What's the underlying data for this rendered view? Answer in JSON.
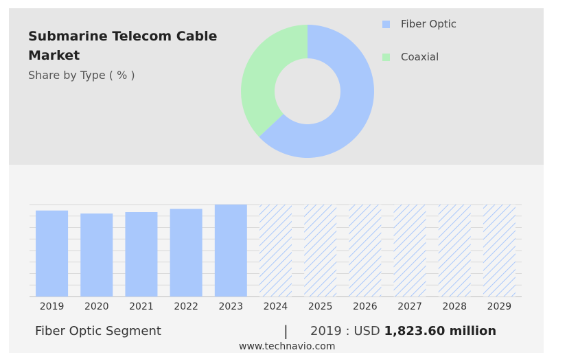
{
  "header": {
    "title_line1": "Submarine Telecom Cable",
    "title_line2": "Market",
    "subtitle": "Share by Type ( % )"
  },
  "legend": [
    {
      "label": "Fiber Optic",
      "color": "#a9c8fc"
    },
    {
      "label": "Coaxial",
      "color": "#b4f0bc"
    }
  ],
  "footer": {
    "segment": "Fiber Optic Segment",
    "separator": "|",
    "prefix": "2019 : USD",
    "value": "1,823.60 million",
    "source": "www.technavio.com"
  },
  "chart_data": [
    {
      "type": "pie",
      "donut": true,
      "title": "Share by Type ( % )",
      "labels": [
        "Fiber Optic",
        "Coaxial"
      ],
      "values": [
        63,
        37
      ],
      "colors": [
        "#a9c8fc",
        "#b4f0bc"
      ]
    },
    {
      "type": "bar",
      "categories": [
        "2019",
        "2020",
        "2021",
        "2022",
        "2023",
        "2024",
        "2025",
        "2026",
        "2027",
        "2028",
        "2029"
      ],
      "series": [
        {
          "values": [
            1823.6,
            1760,
            1790,
            1860,
            1950,
            null,
            null,
            null,
            null,
            null,
            null
          ]
        }
      ],
      "forecast_categories": [
        "2024",
        "2025",
        "2026",
        "2027",
        "2028",
        "2029"
      ],
      "forecast_level": 1950,
      "ylim": [
        0,
        1950
      ],
      "bar_color": "#a9c8fc",
      "grid": true
    }
  ]
}
